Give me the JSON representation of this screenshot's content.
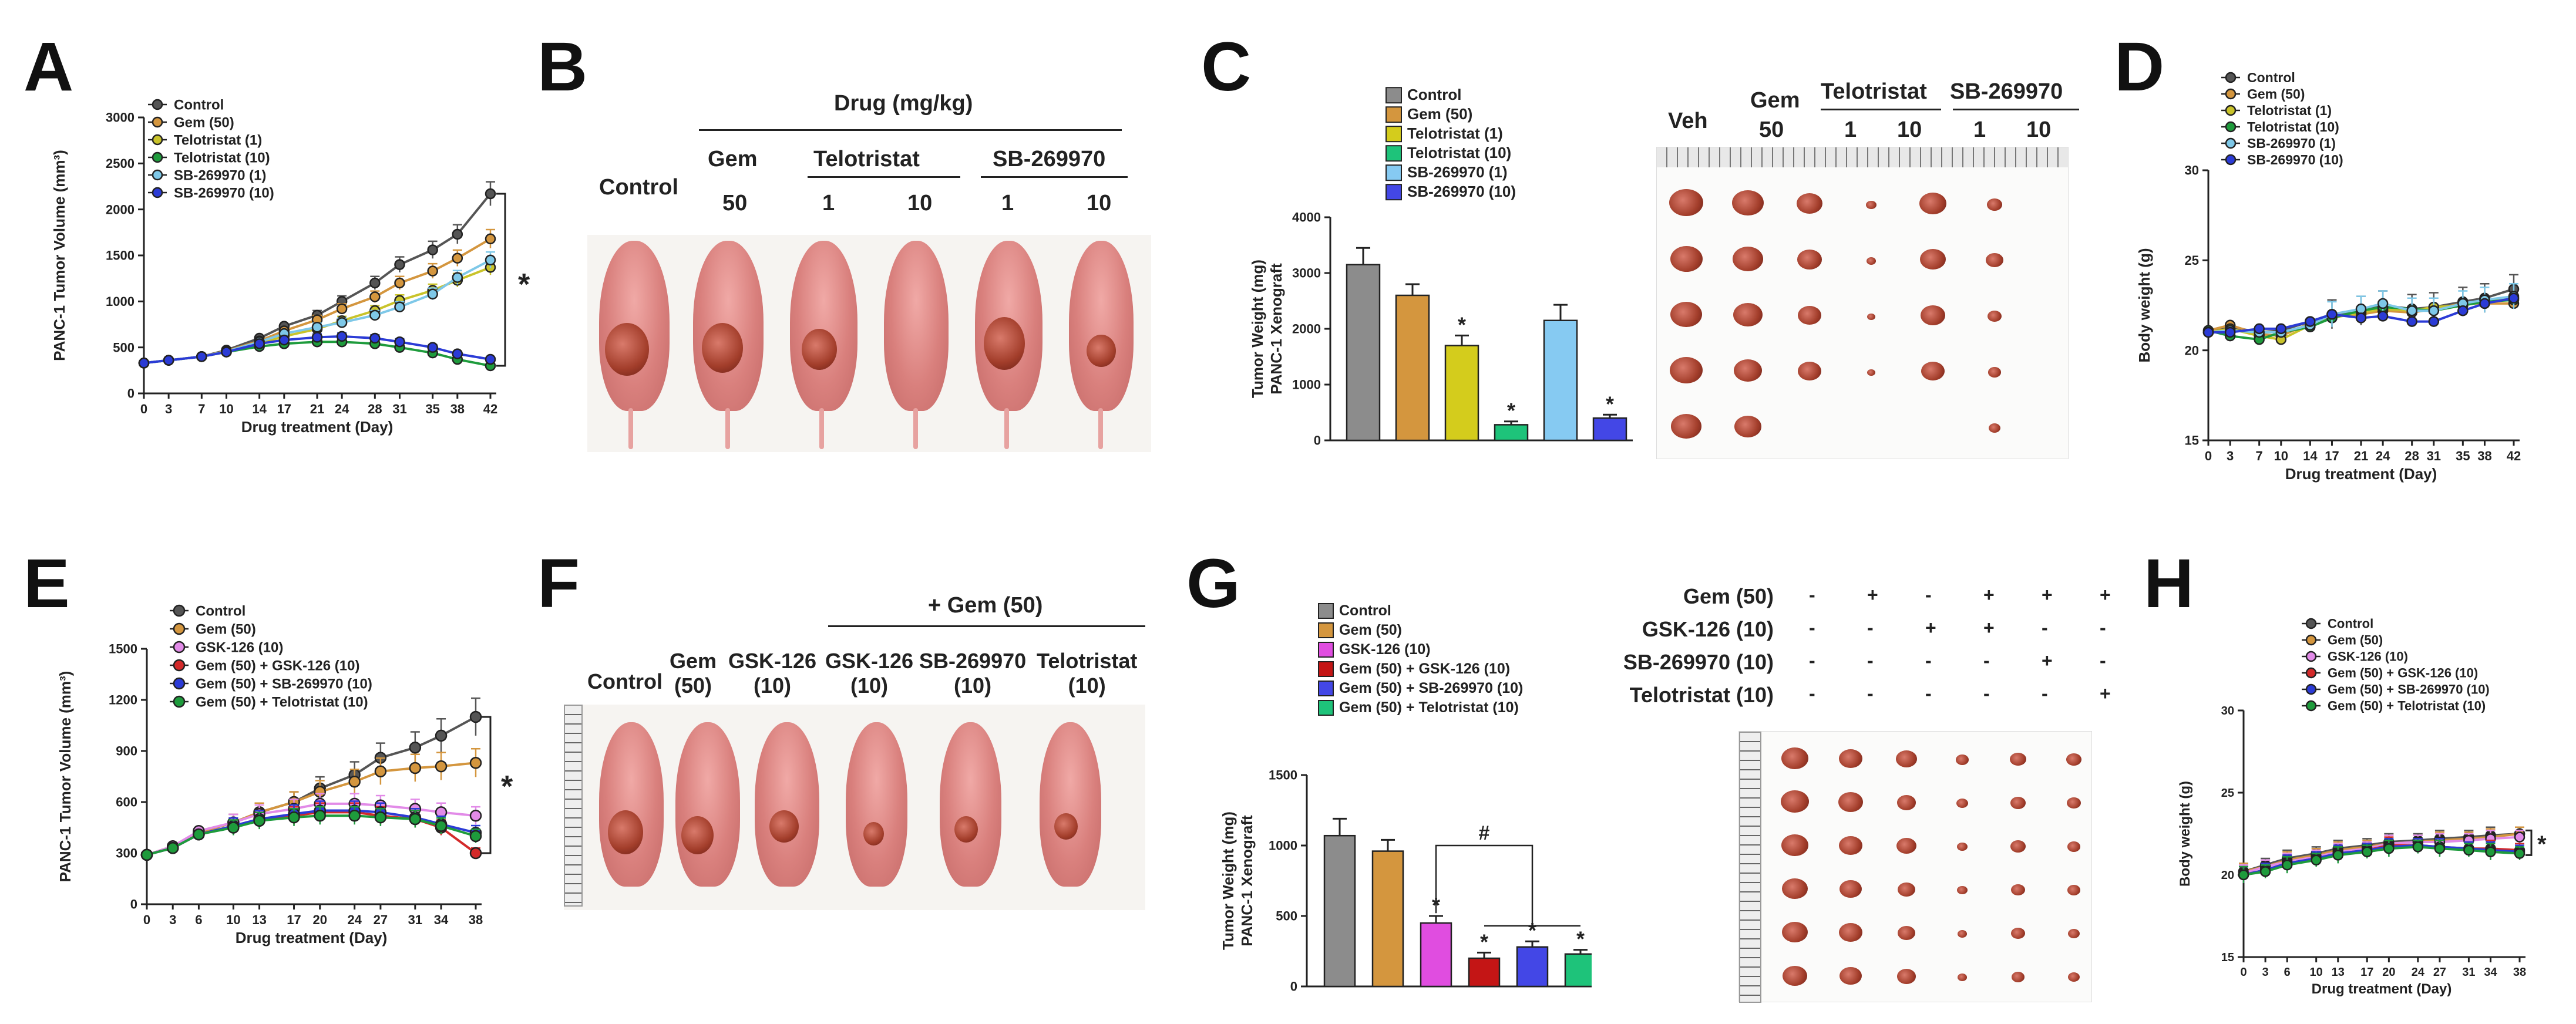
{
  "panel_labels": {
    "A": "A",
    "B": "B",
    "C": "C",
    "D": "D",
    "E": "E",
    "F": "F",
    "G": "G",
    "H": "H"
  },
  "chart_data": [
    {
      "id": "A",
      "type": "line",
      "title": "",
      "xlabel": "Drug treatment (Day)",
      "ylabel": "PANC-1 Tumor Volume (mm³)",
      "x": [
        0,
        3,
        7,
        10,
        14,
        17,
        21,
        24,
        28,
        31,
        35,
        38,
        42
      ],
      "xticks": [
        "0",
        "3",
        "7",
        "10",
        "14",
        "17",
        "21",
        "24",
        "28",
        "31",
        "35",
        "38",
        "42"
      ],
      "ylim": [
        0,
        3000
      ],
      "yticks": [
        "0",
        "500",
        "1000",
        "1500",
        "2000",
        "2500",
        "3000"
      ],
      "series": [
        {
          "name": "Control",
          "color": "#555555",
          "values": [
            330,
            360,
            400,
            470,
            600,
            730,
            850,
            1000,
            1200,
            1400,
            1560,
            1730,
            2170
          ]
        },
        {
          "name": "Gem (50)",
          "color": "#d4963e",
          "values": [
            330,
            360,
            400,
            460,
            570,
            680,
            800,
            920,
            1050,
            1200,
            1330,
            1470,
            1680
          ]
        },
        {
          "name": "Telotristat (1)",
          "color": "#c9c32a",
          "values": [
            330,
            360,
            400,
            450,
            540,
            620,
            700,
            790,
            900,
            1010,
            1120,
            1230,
            1370
          ]
        },
        {
          "name": "Telotristat (10)",
          "color": "#1e9b3c",
          "values": [
            330,
            360,
            400,
            450,
            510,
            540,
            560,
            560,
            540,
            500,
            440,
            370,
            300
          ]
        },
        {
          "name": "SB-269970 (1)",
          "color": "#7ec8e8",
          "values": [
            330,
            360,
            400,
            455,
            560,
            650,
            720,
            770,
            850,
            940,
            1080,
            1260,
            1450
          ]
        },
        {
          "name": "SB-269970 (10)",
          "color": "#2b3bd6",
          "values": [
            330,
            360,
            400,
            450,
            540,
            580,
            610,
            620,
            600,
            560,
            500,
            430,
            370
          ]
        }
      ],
      "annotation": "*"
    },
    {
      "id": "C",
      "type": "bar",
      "ylabel": "Tumor Weight (mg)",
      "ylabel2": "PANC-1 Xenograft",
      "ylim": [
        0,
        4000
      ],
      "yticks": [
        "0",
        "1000",
        "2000",
        "3000",
        "4000"
      ],
      "categories": [
        "Control",
        "Gem (50)",
        "Telotristat (1)",
        "Telotristat (10)",
        "SB-269970 (1)",
        "SB-269970 (10)"
      ],
      "values": [
        3150,
        2600,
        1700,
        280,
        2150,
        400
      ],
      "errors": [
        300,
        200,
        180,
        60,
        280,
        60
      ],
      "colors": [
        "#8c8c8c",
        "#d4963e",
        "#d4cc1c",
        "#1ec37a",
        "#86caf2",
        "#4347e6"
      ],
      "stars": [
        "",
        "",
        "*",
        "*",
        "",
        "*"
      ]
    },
    {
      "id": "D",
      "type": "line",
      "xlabel": "Drug treatment (Day)",
      "ylabel": "Body weight (g)",
      "x": [
        0,
        3,
        7,
        10,
        14,
        17,
        21,
        24,
        28,
        31,
        35,
        38,
        42
      ],
      "xticks": [
        "0",
        "3",
        "7",
        "10",
        "14",
        "17",
        "21",
        "24",
        "28",
        "31",
        "35",
        "38",
        "42"
      ],
      "ylim": [
        15,
        30
      ],
      "yticks": [
        "15",
        "20",
        "25",
        "30"
      ],
      "series": [
        {
          "name": "Control",
          "color": "#555555",
          "values": [
            21.0,
            21.3,
            21.0,
            21.1,
            21.6,
            22.0,
            22.2,
            22.5,
            22.3,
            22.4,
            22.7,
            22.9,
            23.4
          ]
        },
        {
          "name": "Gem (50)",
          "color": "#d4963e",
          "values": [
            21.1,
            21.4,
            20.9,
            20.8,
            21.5,
            21.9,
            22.0,
            22.2,
            22.1,
            22.3,
            22.6,
            22.6,
            22.6
          ]
        },
        {
          "name": "Telotristat (1)",
          "color": "#c9c32a",
          "values": [
            21.0,
            21.2,
            20.8,
            20.6,
            21.4,
            21.8,
            22.1,
            22.3,
            22.2,
            22.4,
            22.5,
            22.7,
            22.9
          ]
        },
        {
          "name": "Telotristat (10)",
          "color": "#1e9b3c",
          "values": [
            21.1,
            20.8,
            20.6,
            21.0,
            21.3,
            21.8,
            22.2,
            22.4,
            22.3,
            22.2,
            22.5,
            22.7,
            22.8
          ]
        },
        {
          "name": "SB-269970 (1)",
          "color": "#7ec8e8",
          "values": [
            21.0,
            21.1,
            21.0,
            21.0,
            21.4,
            22.0,
            22.3,
            22.6,
            22.2,
            22.2,
            22.6,
            22.8,
            23.0
          ]
        },
        {
          "name": "SB-269970 (10)",
          "color": "#2b3bd6",
          "values": [
            21.0,
            21.0,
            21.2,
            21.2,
            21.6,
            22.0,
            21.8,
            21.9,
            21.6,
            21.6,
            22.2,
            22.6,
            22.9
          ]
        }
      ]
    },
    {
      "id": "E",
      "type": "line",
      "xlabel": "Drug treatment (Day)",
      "ylabel": "PANC-1 Tumor Volume (mm³)",
      "x": [
        0,
        3,
        6,
        10,
        13,
        17,
        20,
        24,
        27,
        31,
        34,
        38
      ],
      "xticks": [
        "0",
        "3",
        "6",
        "10",
        "13",
        "17",
        "20",
        "24",
        "27",
        "31",
        "34",
        "38"
      ],
      "ylim": [
        0,
        1500
      ],
      "yticks": [
        "0",
        "300",
        "600",
        "900",
        "1200",
        "1500"
      ],
      "series": [
        {
          "name": "Control",
          "color": "#555555",
          "values": [
            290,
            340,
            420,
            480,
            540,
            600,
            680,
            760,
            860,
            920,
            990,
            1100
          ]
        },
        {
          "name": "Gem (50)",
          "color": "#d4963e",
          "values": [
            290,
            340,
            420,
            480,
            540,
            600,
            660,
            720,
            780,
            800,
            810,
            830
          ]
        },
        {
          "name": "GSK-126 (10)",
          "color": "#e28be8",
          "values": [
            290,
            340,
            430,
            480,
            530,
            560,
            590,
            590,
            580,
            560,
            540,
            520
          ]
        },
        {
          "name": "Gem (50) + GSK-126 (10)",
          "color": "#d42a2a",
          "values": [
            290,
            330,
            410,
            460,
            500,
            520,
            540,
            540,
            520,
            500,
            450,
            300
          ]
        },
        {
          "name": "Gem (50) + SB-269970 (10)",
          "color": "#2b3bd6",
          "values": [
            290,
            330,
            410,
            460,
            500,
            530,
            550,
            550,
            540,
            510,
            470,
            420
          ]
        },
        {
          "name": "Gem (50) + Telotristat (10)",
          "color": "#1e9b3c",
          "values": [
            290,
            330,
            410,
            450,
            490,
            510,
            520,
            520,
            510,
            500,
            460,
            400
          ]
        }
      ],
      "annotation": "*"
    },
    {
      "id": "G",
      "type": "bar",
      "ylabel": "Tumor Weight (mg)",
      "ylabel2": "PANC-1 Xenograft",
      "ylim": [
        0,
        1500
      ],
      "yticks": [
        "0",
        "500",
        "1000",
        "1500"
      ],
      "categories": [
        "Control",
        "Gem (50)",
        "GSK-126 (10)",
        "Gem (50) + GSK-126 (10)",
        "Gem (50) + SB-269970 (10)",
        "Gem (50) + Telotristat (10)"
      ],
      "values": [
        1070,
        960,
        450,
        200,
        280,
        230
      ],
      "errors": [
        120,
        80,
        50,
        40,
        40,
        30
      ],
      "colors": [
        "#8c8c8c",
        "#d4963e",
        "#e04de0",
        "#c41515",
        "#4347e6",
        "#1ec37a"
      ],
      "stars": [
        "",
        "",
        "*",
        "*",
        "*",
        "*"
      ],
      "hash": "#"
    },
    {
      "id": "H",
      "type": "line",
      "xlabel": "Drug treatment (Day)",
      "ylabel": "Body weight (g)",
      "x": [
        0,
        3,
        6,
        10,
        13,
        17,
        20,
        24,
        27,
        31,
        34,
        38
      ],
      "xticks": [
        "0",
        "3",
        "6",
        "10",
        "13",
        "17",
        "20",
        "24",
        "27",
        "31",
        "34",
        "38"
      ],
      "ylim": [
        15,
        30
      ],
      "yticks": [
        "15",
        "20",
        "25",
        "30"
      ],
      "series": [
        {
          "name": "Control",
          "color": "#555555",
          "values": [
            20.2,
            20.6,
            21.0,
            21.3,
            21.6,
            21.8,
            22.0,
            22.1,
            22.2,
            22.3,
            22.4,
            22.5
          ]
        },
        {
          "name": "Gem (50)",
          "color": "#d4963e",
          "values": [
            20.2,
            20.5,
            20.9,
            21.2,
            21.5,
            21.7,
            21.9,
            22.0,
            22.1,
            22.2,
            22.3,
            22.5
          ]
        },
        {
          "name": "GSK-126 (10)",
          "color": "#e28be8",
          "values": [
            20.1,
            20.5,
            20.8,
            21.1,
            21.4,
            21.6,
            21.9,
            22.0,
            22.0,
            22.1,
            22.2,
            22.3
          ]
        },
        {
          "name": "Gem (50) + GSK-126 (10)",
          "color": "#d42a2a",
          "values": [
            20.0,
            20.3,
            20.7,
            21.0,
            21.3,
            21.5,
            21.8,
            21.8,
            21.7,
            21.6,
            21.6,
            21.5
          ]
        },
        {
          "name": "Gem (50) + SB-269970 (10)",
          "color": "#2b3bd6",
          "values": [
            20.0,
            20.3,
            20.7,
            21.0,
            21.3,
            21.5,
            21.7,
            21.8,
            21.7,
            21.6,
            21.5,
            21.4
          ]
        },
        {
          "name": "Gem (50) + Telotristat (10)",
          "color": "#1e9b3c",
          "values": [
            20.0,
            20.2,
            20.6,
            20.9,
            21.2,
            21.4,
            21.6,
            21.7,
            21.6,
            21.5,
            21.4,
            21.3
          ]
        }
      ],
      "annotation": "*"
    }
  ],
  "panelB": {
    "drug_header": "Drug (mg/kg)",
    "control": "Control",
    "gem": "Gem",
    "telotristat": "Telotristat",
    "sb": "SB-269970",
    "doses": [
      "50",
      "1",
      "10",
      "1",
      "10"
    ]
  },
  "panelC_photo": {
    "veh": "Veh",
    "gem": "Gem",
    "gem_dose": "50",
    "telotristat": "Telotristat",
    "sb": "SB-269970",
    "doses": [
      "1",
      "10",
      "1",
      "10"
    ]
  },
  "panelF": {
    "gem_header": "+ Gem (50)",
    "labels": [
      "Control",
      "Gem\n(50)",
      "GSK-126\n(10)",
      "GSK-126\n(10)",
      "SB-269970\n(10)",
      "Telotristat\n(10)"
    ]
  },
  "panelG_table": {
    "rows": [
      {
        "label": "Gem (50)",
        "marks": [
          "-",
          "+",
          "-",
          "+",
          "+",
          "+"
        ]
      },
      {
        "label": "GSK-126 (10)",
        "marks": [
          "-",
          "-",
          "+",
          "+",
          "-",
          "-"
        ]
      },
      {
        "label": "SB-269970 (10)",
        "marks": [
          "-",
          "-",
          "-",
          "-",
          "+",
          "-"
        ]
      },
      {
        "label": "Telotristat (10)",
        "marks": [
          "-",
          "-",
          "-",
          "-",
          "-",
          "+"
        ]
      }
    ]
  }
}
